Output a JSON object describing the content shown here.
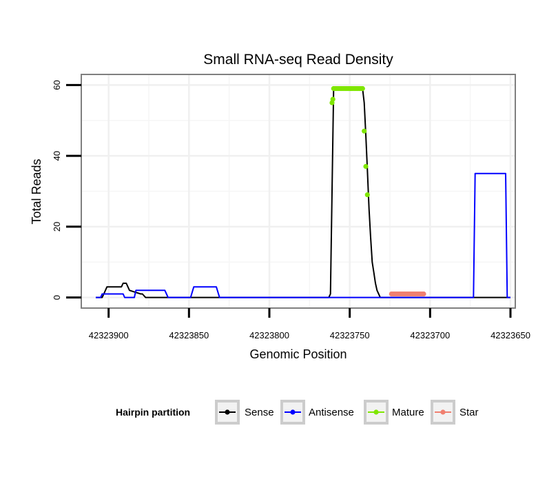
{
  "chart_data": {
    "type": "line",
    "title": "Small RNA-seq Read Density",
    "xlabel": "Genomic Position",
    "ylabel": "Total Reads",
    "xlim": [
      42323917,
      42323647
    ],
    "x_reversed": true,
    "ylim": [
      -3,
      63
    ],
    "x_ticks": [
      42323900,
      42323850,
      42323800,
      42323750,
      42323700,
      42323650
    ],
    "x_tick_labels": [
      "42323900",
      "42323850",
      "42323800",
      "42323750",
      "42323700",
      "42323650"
    ],
    "y_ticks": [
      0,
      20,
      40,
      60
    ],
    "y_tick_labels": [
      "0",
      "20",
      "40",
      "60"
    ],
    "grid": true,
    "legend": {
      "title": "Hairpin partition",
      "position": "bottom",
      "entries": [
        "Sense",
        "Antisense",
        "Mature",
        "Star"
      ]
    },
    "series": [
      {
        "name": "Sense",
        "color": "#000000",
        "style": "line",
        "x": [
          42323908,
          42323904,
          42323903,
          42323901,
          42323892,
          42323891,
          42323889,
          42323887,
          42323880,
          42323879,
          42323877,
          42323763,
          42323762,
          42323761,
          42323760,
          42323742,
          42323741,
          42323740,
          42323739,
          42323738,
          42323737,
          42323736,
          42323735,
          42323734,
          42323733,
          42323731,
          42323650
        ],
        "y": [
          0,
          0,
          1,
          3,
          3,
          4,
          4,
          2,
          1,
          1,
          0,
          0,
          1,
          30,
          59,
          59,
          55,
          46,
          36,
          25,
          17,
          10,
          7,
          4,
          2,
          0,
          0
        ]
      },
      {
        "name": "Antisense",
        "color": "#0000ff",
        "style": "line",
        "x": [
          42323908,
          42323905,
          42323904,
          42323891,
          42323890,
          42323884,
          42323883,
          42323874,
          42323873,
          42323865,
          42323863,
          42323849,
          42323847,
          42323833,
          42323831,
          42323732,
          42323731,
          42323678,
          42323677,
          42323673,
          42323672,
          42323653,
          42323652,
          42323650
        ],
        "y": [
          0,
          0,
          1,
          1,
          0,
          0,
          2,
          2,
          2,
          2,
          0,
          0,
          3,
          3,
          0,
          0,
          0,
          0,
          0,
          0,
          35,
          35,
          0,
          0
        ]
      },
      {
        "name": "Mature",
        "color": "#7fe600",
        "style": "points",
        "x": [
          42323761,
          42323760.5,
          42323760,
          42323759,
          42323758,
          42323757,
          42323756,
          42323755,
          42323754,
          42323753,
          42323752,
          42323751,
          42323750,
          42323749,
          42323748,
          42323747,
          42323746,
          42323745,
          42323744,
          42323743,
          42323742,
          42323741,
          42323740,
          42323739
        ],
        "y": [
          55,
          56,
          59,
          59,
          59,
          59,
          59,
          59,
          59,
          59,
          59,
          59,
          59,
          59,
          59,
          59,
          59,
          59,
          59,
          59,
          59,
          47,
          37,
          29
        ]
      },
      {
        "name": "Star",
        "color": "#f08070",
        "style": "points",
        "x": [
          42323724,
          42323723,
          42323722,
          42323721,
          42323720,
          42323719,
          42323718,
          42323717,
          42323716,
          42323715,
          42323714,
          42323713,
          42323712,
          42323711,
          42323710,
          42323709,
          42323708,
          42323707,
          42323706,
          42323705,
          42323704
        ],
        "y": [
          1,
          1,
          1,
          1,
          1,
          1,
          1,
          1,
          1,
          1,
          1,
          1,
          1,
          1,
          1,
          1,
          1,
          1,
          1,
          1,
          1
        ]
      }
    ]
  }
}
